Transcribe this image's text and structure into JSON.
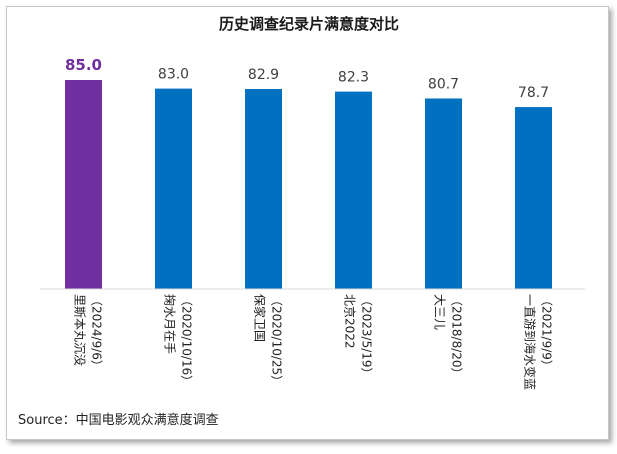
{
  "chart_data": {
    "type": "bar",
    "title": "历史调查纪录片满意度对比",
    "categories": [
      {
        "name": "里斯本丸沉没",
        "date": "（2024/9/6）"
      },
      {
        "name": "掬水月在手",
        "date": "（2020/10/16）"
      },
      {
        "name": "保家卫国",
        "date": "（2020/10/25）"
      },
      {
        "name": "北京2022",
        "date": "（2023/5/19）"
      },
      {
        "name": "大三儿",
        "date": "（2018/8/20）"
      },
      {
        "name": "一直游到海水变蓝",
        "date": "（2021/9/9）"
      }
    ],
    "values": [
      85.0,
      83.0,
      82.9,
      82.3,
      80.7,
      78.7
    ],
    "value_labels": [
      "85.0",
      "83.0",
      "82.9",
      "82.3",
      "80.7",
      "78.7"
    ],
    "highlight_index": 0,
    "colors": {
      "highlight": "#7030a0",
      "bar": "#0070c0",
      "highlight_label": "#7030a0",
      "label": "#404040"
    },
    "xlabel": "",
    "ylabel": "",
    "grid": false
  },
  "source": "Source：中国电影观众满意度调查"
}
